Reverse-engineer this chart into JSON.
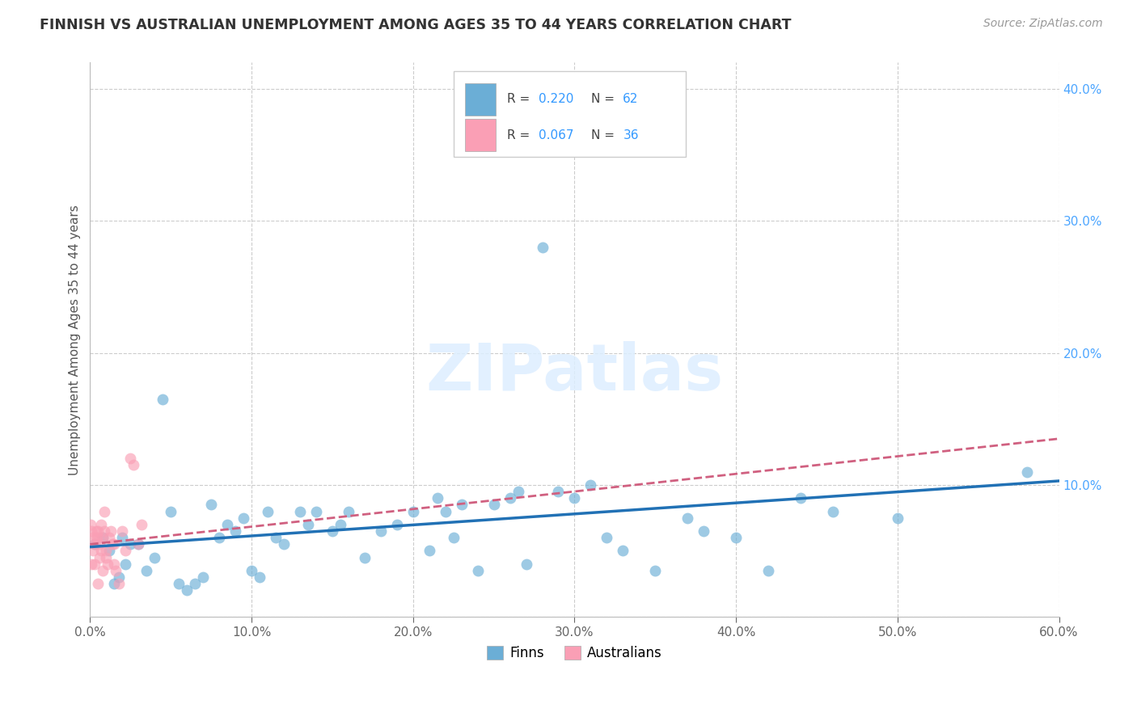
{
  "title": "FINNISH VS AUSTRALIAN UNEMPLOYMENT AMONG AGES 35 TO 44 YEARS CORRELATION CHART",
  "source": "Source: ZipAtlas.com",
  "ylabel": "Unemployment Among Ages 35 to 44 years",
  "xlim": [
    0.0,
    0.6
  ],
  "ylim": [
    0.0,
    0.42
  ],
  "xticks": [
    0.0,
    0.1,
    0.2,
    0.3,
    0.4,
    0.5,
    0.6
  ],
  "yticks": [
    0.0,
    0.1,
    0.2,
    0.3,
    0.4
  ],
  "ytick_labels": [
    "",
    "10.0%",
    "20.0%",
    "30.0%",
    "40.0%"
  ],
  "xtick_labels": [
    "0.0%",
    "10.0%",
    "20.0%",
    "30.0%",
    "40.0%",
    "50.0%",
    "60.0%"
  ],
  "finns_color": "#6baed6",
  "aus_color": "#fa9fb5",
  "finns_line_color": "#2171b5",
  "aus_line_color": "#d06080",
  "finns_x": [
    0.003,
    0.008,
    0.012,
    0.015,
    0.018,
    0.02,
    0.022,
    0.025,
    0.03,
    0.035,
    0.04,
    0.045,
    0.05,
    0.055,
    0.06,
    0.065,
    0.07,
    0.075,
    0.08,
    0.085,
    0.09,
    0.095,
    0.1,
    0.105,
    0.11,
    0.115,
    0.12,
    0.13,
    0.135,
    0.14,
    0.15,
    0.155,
    0.16,
    0.17,
    0.18,
    0.19,
    0.2,
    0.21,
    0.215,
    0.22,
    0.225,
    0.23,
    0.24,
    0.25,
    0.26,
    0.265,
    0.27,
    0.28,
    0.29,
    0.3,
    0.31,
    0.32,
    0.33,
    0.35,
    0.37,
    0.38,
    0.4,
    0.42,
    0.44,
    0.46,
    0.5,
    0.58
  ],
  "finns_y": [
    0.055,
    0.06,
    0.05,
    0.025,
    0.03,
    0.06,
    0.04,
    0.055,
    0.055,
    0.035,
    0.045,
    0.165,
    0.08,
    0.025,
    0.02,
    0.025,
    0.03,
    0.085,
    0.06,
    0.07,
    0.065,
    0.075,
    0.035,
    0.03,
    0.08,
    0.06,
    0.055,
    0.08,
    0.07,
    0.08,
    0.065,
    0.07,
    0.08,
    0.045,
    0.065,
    0.07,
    0.08,
    0.05,
    0.09,
    0.08,
    0.06,
    0.085,
    0.035,
    0.085,
    0.09,
    0.095,
    0.04,
    0.28,
    0.095,
    0.09,
    0.1,
    0.06,
    0.05,
    0.035,
    0.075,
    0.065,
    0.06,
    0.035,
    0.09,
    0.08,
    0.075,
    0.11
  ],
  "aus_x": [
    0.0005,
    0.001,
    0.001,
    0.002,
    0.002,
    0.003,
    0.003,
    0.004,
    0.004,
    0.005,
    0.005,
    0.006,
    0.006,
    0.007,
    0.007,
    0.008,
    0.008,
    0.009,
    0.01,
    0.01,
    0.011,
    0.012,
    0.013,
    0.014,
    0.015,
    0.015,
    0.016,
    0.018,
    0.02,
    0.022,
    0.025,
    0.027,
    0.03,
    0.032,
    0.005,
    0.009
  ],
  "aus_y": [
    0.07,
    0.065,
    0.04,
    0.05,
    0.06,
    0.055,
    0.04,
    0.06,
    0.065,
    0.06,
    0.025,
    0.055,
    0.045,
    0.07,
    0.05,
    0.06,
    0.035,
    0.065,
    0.05,
    0.045,
    0.04,
    0.06,
    0.065,
    0.055,
    0.04,
    0.055,
    0.035,
    0.025,
    0.065,
    0.05,
    0.12,
    0.115,
    0.055,
    0.07,
    0.065,
    0.08
  ],
  "finns_line_x": [
    0.0,
    0.6
  ],
  "finns_line_y": [
    0.053,
    0.103
  ],
  "aus_line_x": [
    0.0,
    0.6
  ],
  "aus_line_y": [
    0.055,
    0.135
  ]
}
